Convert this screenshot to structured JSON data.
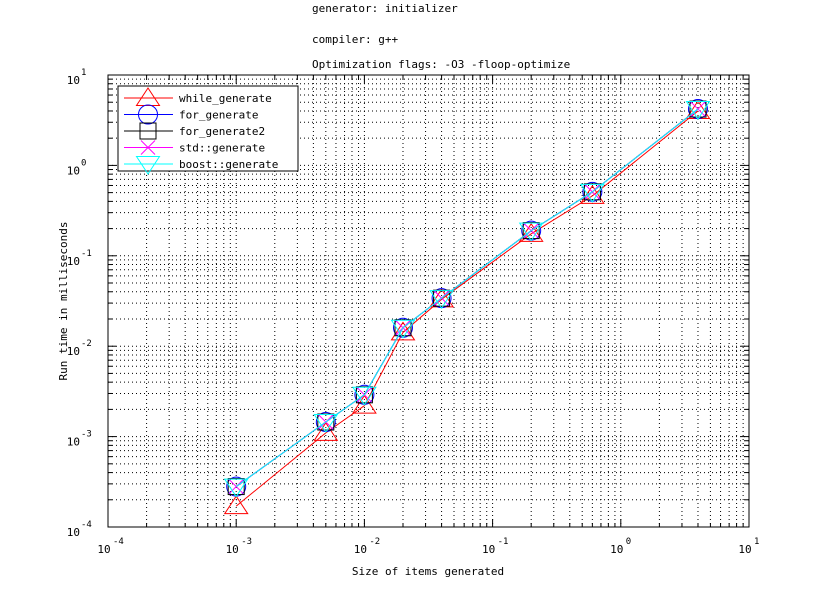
{
  "title_lines": [
    "generator: initializer",
    "compiler: g++",
    "Optimization flags: -O3 -floop-optimize"
  ],
  "chart_data": {
    "type": "line",
    "xlabel": "Size of items generated",
    "ylabel": "Run time in milliseconds",
    "xscale": "log",
    "yscale": "log",
    "xlim": [
      0.0001,
      10
    ],
    "ylim": [
      0.0001,
      10
    ],
    "grid": true,
    "legend_position": "top-left",
    "x_ticks": [
      {
        "base": "10",
        "exp": "-4",
        "value": 0.0001
      },
      {
        "base": "10",
        "exp": "-3",
        "value": 0.001
      },
      {
        "base": "10",
        "exp": "-2",
        "value": 0.01
      },
      {
        "base": "10",
        "exp": "-1",
        "value": 0.1
      },
      {
        "base": "10",
        "exp": "0",
        "value": 1
      },
      {
        "base": "10",
        "exp": "1",
        "value": 10
      }
    ],
    "y_ticks": [
      {
        "base": "10",
        "exp": "-4",
        "value": 0.0001
      },
      {
        "base": "10",
        "exp": "-3",
        "value": 0.001
      },
      {
        "base": "10",
        "exp": "-2",
        "value": 0.01
      },
      {
        "base": "10",
        "exp": "-1",
        "value": 0.1
      },
      {
        "base": "10",
        "exp": "0",
        "value": 1
      },
      {
        "base": "10",
        "exp": "1",
        "value": 10
      }
    ],
    "x": [
      0.001,
      0.005,
      0.01,
      0.02,
      0.04,
      0.2,
      0.6,
      4.0
    ],
    "series": [
      {
        "name": "while_generate",
        "color": "#ff0000",
        "marker": "triangle-up",
        "values": [
          0.00017,
          0.0011,
          0.0022,
          0.0142,
          0.033,
          0.175,
          0.46,
          4.0
        ]
      },
      {
        "name": "for_generate",
        "color": "#0000ff",
        "marker": "circle",
        "values": [
          0.00028,
          0.00145,
          0.0029,
          0.016,
          0.034,
          0.19,
          0.51,
          4.2
        ]
      },
      {
        "name": "for_generate2",
        "color": "#000000",
        "marker": "square",
        "values": [
          0.00028,
          0.00145,
          0.0029,
          0.016,
          0.034,
          0.19,
          0.51,
          4.2
        ]
      },
      {
        "name": "std::generate",
        "color": "#ff00ff",
        "marker": "x",
        "values": [
          0.00028,
          0.00145,
          0.0029,
          0.016,
          0.034,
          0.19,
          0.51,
          4.2
        ]
      },
      {
        "name": "boost::generate",
        "color": "#00ffff",
        "marker": "triangle-down",
        "values": [
          0.00028,
          0.00145,
          0.0029,
          0.016,
          0.034,
          0.19,
          0.51,
          4.2
        ]
      }
    ]
  }
}
